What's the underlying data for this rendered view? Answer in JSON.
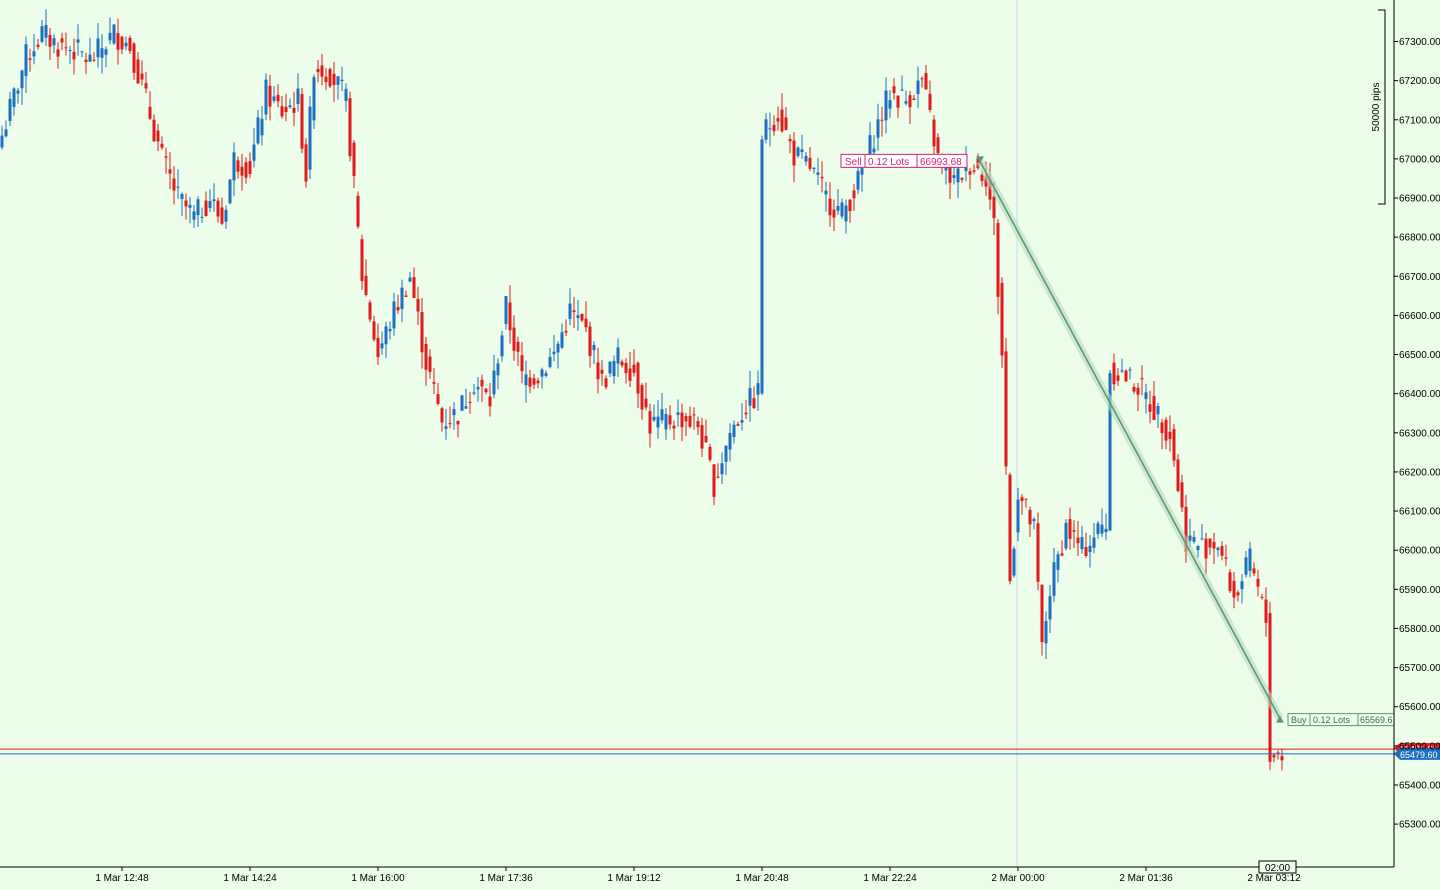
{
  "chart_data": {
    "type": "candlestick",
    "symbol_title": "",
    "y_axis": {
      "ylim": [
        65150,
        67400
      ],
      "ticks": [
        65300,
        65400,
        65500,
        65600,
        65700,
        65800,
        65900,
        66000,
        66100,
        66200,
        66300,
        66400,
        66500,
        66600,
        66700,
        66800,
        66900,
        67000,
        67100,
        67200,
        67300
      ],
      "tick_labels": [
        "65300.00",
        "65400.00",
        "65500.00",
        "65600.00",
        "65700.00",
        "65800.00",
        "65900.00",
        "66000.00",
        "66100.00",
        "66200.00",
        "66300.00",
        "66400.00",
        "66500.00",
        "66600.00",
        "66700.00",
        "66800.00",
        "66900.00",
        "67000.00",
        "67100.00",
        "67200.00",
        "67300.00"
      ]
    },
    "x_axis": {
      "tick_labels": [
        "1 Mar 12:48",
        "1 Mar 14:24",
        "1 Mar 16:00",
        "1 Mar 17:36",
        "1 Mar 19:12",
        "1 Mar 20:48",
        "1 Mar 22:24",
        "2 Mar 00:00",
        "2 Mar 01:36",
        "2 Mar 03:12"
      ],
      "cursor_label": "02:00"
    },
    "scale_label": "50000 pips",
    "price_lines": {
      "red_price": 65491.6,
      "red_label": "65491.60",
      "blue_price": 65479.6,
      "blue_label": "65479.60"
    },
    "trade": {
      "entry": {
        "side": "Sell",
        "lots": "0.12 Lots",
        "price": 66993.68,
        "price_label": "66993.68",
        "candle_index": 242
      },
      "exit": {
        "side": "Buy",
        "lots": "0.12 Lots",
        "price": 65569.6,
        "price_label": "65569.6",
        "candle_index": 318
      }
    },
    "colors": {
      "background": "#ecfde9",
      "bull": "#1e6fc0",
      "bear": "#e11a1a",
      "trade_line": "#5a9a70",
      "red_line": "#e11a1a",
      "blue_line": "#1e6fc0",
      "sell_label": "#d4207a"
    },
    "candles_start_index": 0,
    "keypoints": [
      [
        0,
        67060
      ],
      [
        6,
        67260
      ],
      [
        10,
        67320
      ],
      [
        14,
        67290
      ],
      [
        18,
        67280
      ],
      [
        22,
        67250
      ],
      [
        28,
        67320
      ],
      [
        32,
        67290
      ],
      [
        36,
        67150
      ],
      [
        40,
        67000
      ],
      [
        44,
        66900
      ],
      [
        48,
        66850
      ],
      [
        52,
        66900
      ],
      [
        55,
        66840
      ],
      [
        58,
        67000
      ],
      [
        62,
        66980
      ],
      [
        66,
        67170
      ],
      [
        70,
        67120
      ],
      [
        74,
        67150
      ],
      [
        76,
        66960
      ],
      [
        78,
        67240
      ],
      [
        82,
        67220
      ],
      [
        86,
        67150
      ],
      [
        90,
        66700
      ],
      [
        94,
        66500
      ],
      [
        98,
        66610
      ],
      [
        102,
        66700
      ],
      [
        106,
        66480
      ],
      [
        110,
        66330
      ],
      [
        114,
        66350
      ],
      [
        118,
        66430
      ],
      [
        122,
        66380
      ],
      [
        126,
        66620
      ],
      [
        130,
        66440
      ],
      [
        134,
        66450
      ],
      [
        138,
        66500
      ],
      [
        142,
        66610
      ],
      [
        146,
        66560
      ],
      [
        150,
        66430
      ],
      [
        154,
        66490
      ],
      [
        158,
        66460
      ],
      [
        162,
        66320
      ],
      [
        166,
        66330
      ],
      [
        170,
        66340
      ],
      [
        174,
        66320
      ],
      [
        178,
        66170
      ],
      [
        182,
        66300
      ],
      [
        186,
        66370
      ],
      [
        189,
        66400
      ],
      [
        190,
        67060
      ],
      [
        194,
        67120
      ],
      [
        198,
        67010
      ],
      [
        202,
        66980
      ],
      [
        206,
        66900
      ],
      [
        210,
        66860
      ],
      [
        214,
        66940
      ],
      [
        218,
        67060
      ],
      [
        222,
        67170
      ],
      [
        226,
        67150
      ],
      [
        230,
        67200
      ],
      [
        234,
        67000
      ],
      [
        238,
        66940
      ],
      [
        242,
        66990
      ],
      [
        246,
        66960
      ],
      [
        248,
        66830
      ],
      [
        250,
        66500
      ],
      [
        252,
        65920
      ],
      [
        254,
        66150
      ],
      [
        258,
        66050
      ],
      [
        260,
        65750
      ],
      [
        262,
        65900
      ],
      [
        266,
        66060
      ],
      [
        270,
        66000
      ],
      [
        274,
        66050
      ],
      [
        276,
        66070
      ],
      [
        277,
        66460
      ],
      [
        280,
        66450
      ],
      [
        284,
        66420
      ],
      [
        288,
        66360
      ],
      [
        292,
        66300
      ],
      [
        296,
        66030
      ],
      [
        300,
        66010
      ],
      [
        304,
        66020
      ],
      [
        308,
        65880
      ],
      [
        312,
        65970
      ],
      [
        316,
        65820
      ],
      [
        317,
        65480
      ],
      [
        320,
        65480
      ]
    ]
  }
}
